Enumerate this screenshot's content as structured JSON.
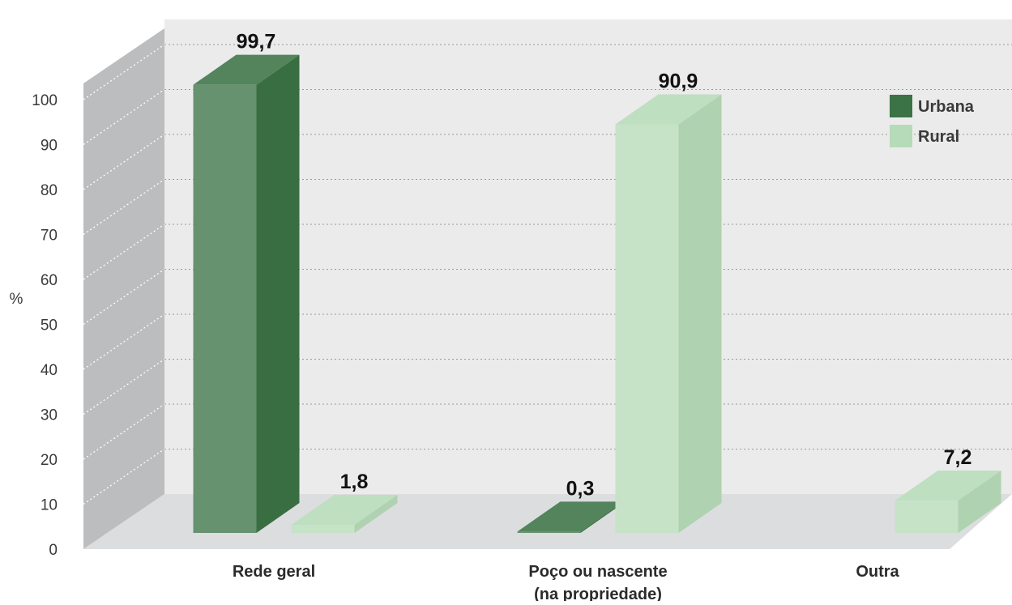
{
  "chart_data": {
    "type": "bar",
    "title": "",
    "xlabel": "",
    "ylabel": "%",
    "ylim": [
      0,
      100
    ],
    "yticks": [
      0,
      10,
      20,
      30,
      40,
      50,
      60,
      70,
      80,
      90,
      100
    ],
    "categories": [
      [
        "Rede geral"
      ],
      [
        "Poço ou nascente",
        "(na propriedade)"
      ],
      [
        "Outra"
      ]
    ],
    "series": [
      {
        "name": "Urbana",
        "color": "#3b7346",
        "values": [
          99.7,
          0.3,
          0
        ],
        "labels": [
          "99,7",
          "0,3",
          null
        ]
      },
      {
        "name": "Rural",
        "color": "#b6dbb8",
        "values": [
          1.8,
          90.9,
          7.2
        ],
        "labels": [
          "1,8",
          "90,9",
          "7,2"
        ]
      }
    ],
    "grid": true,
    "legend_position": "top-right"
  }
}
